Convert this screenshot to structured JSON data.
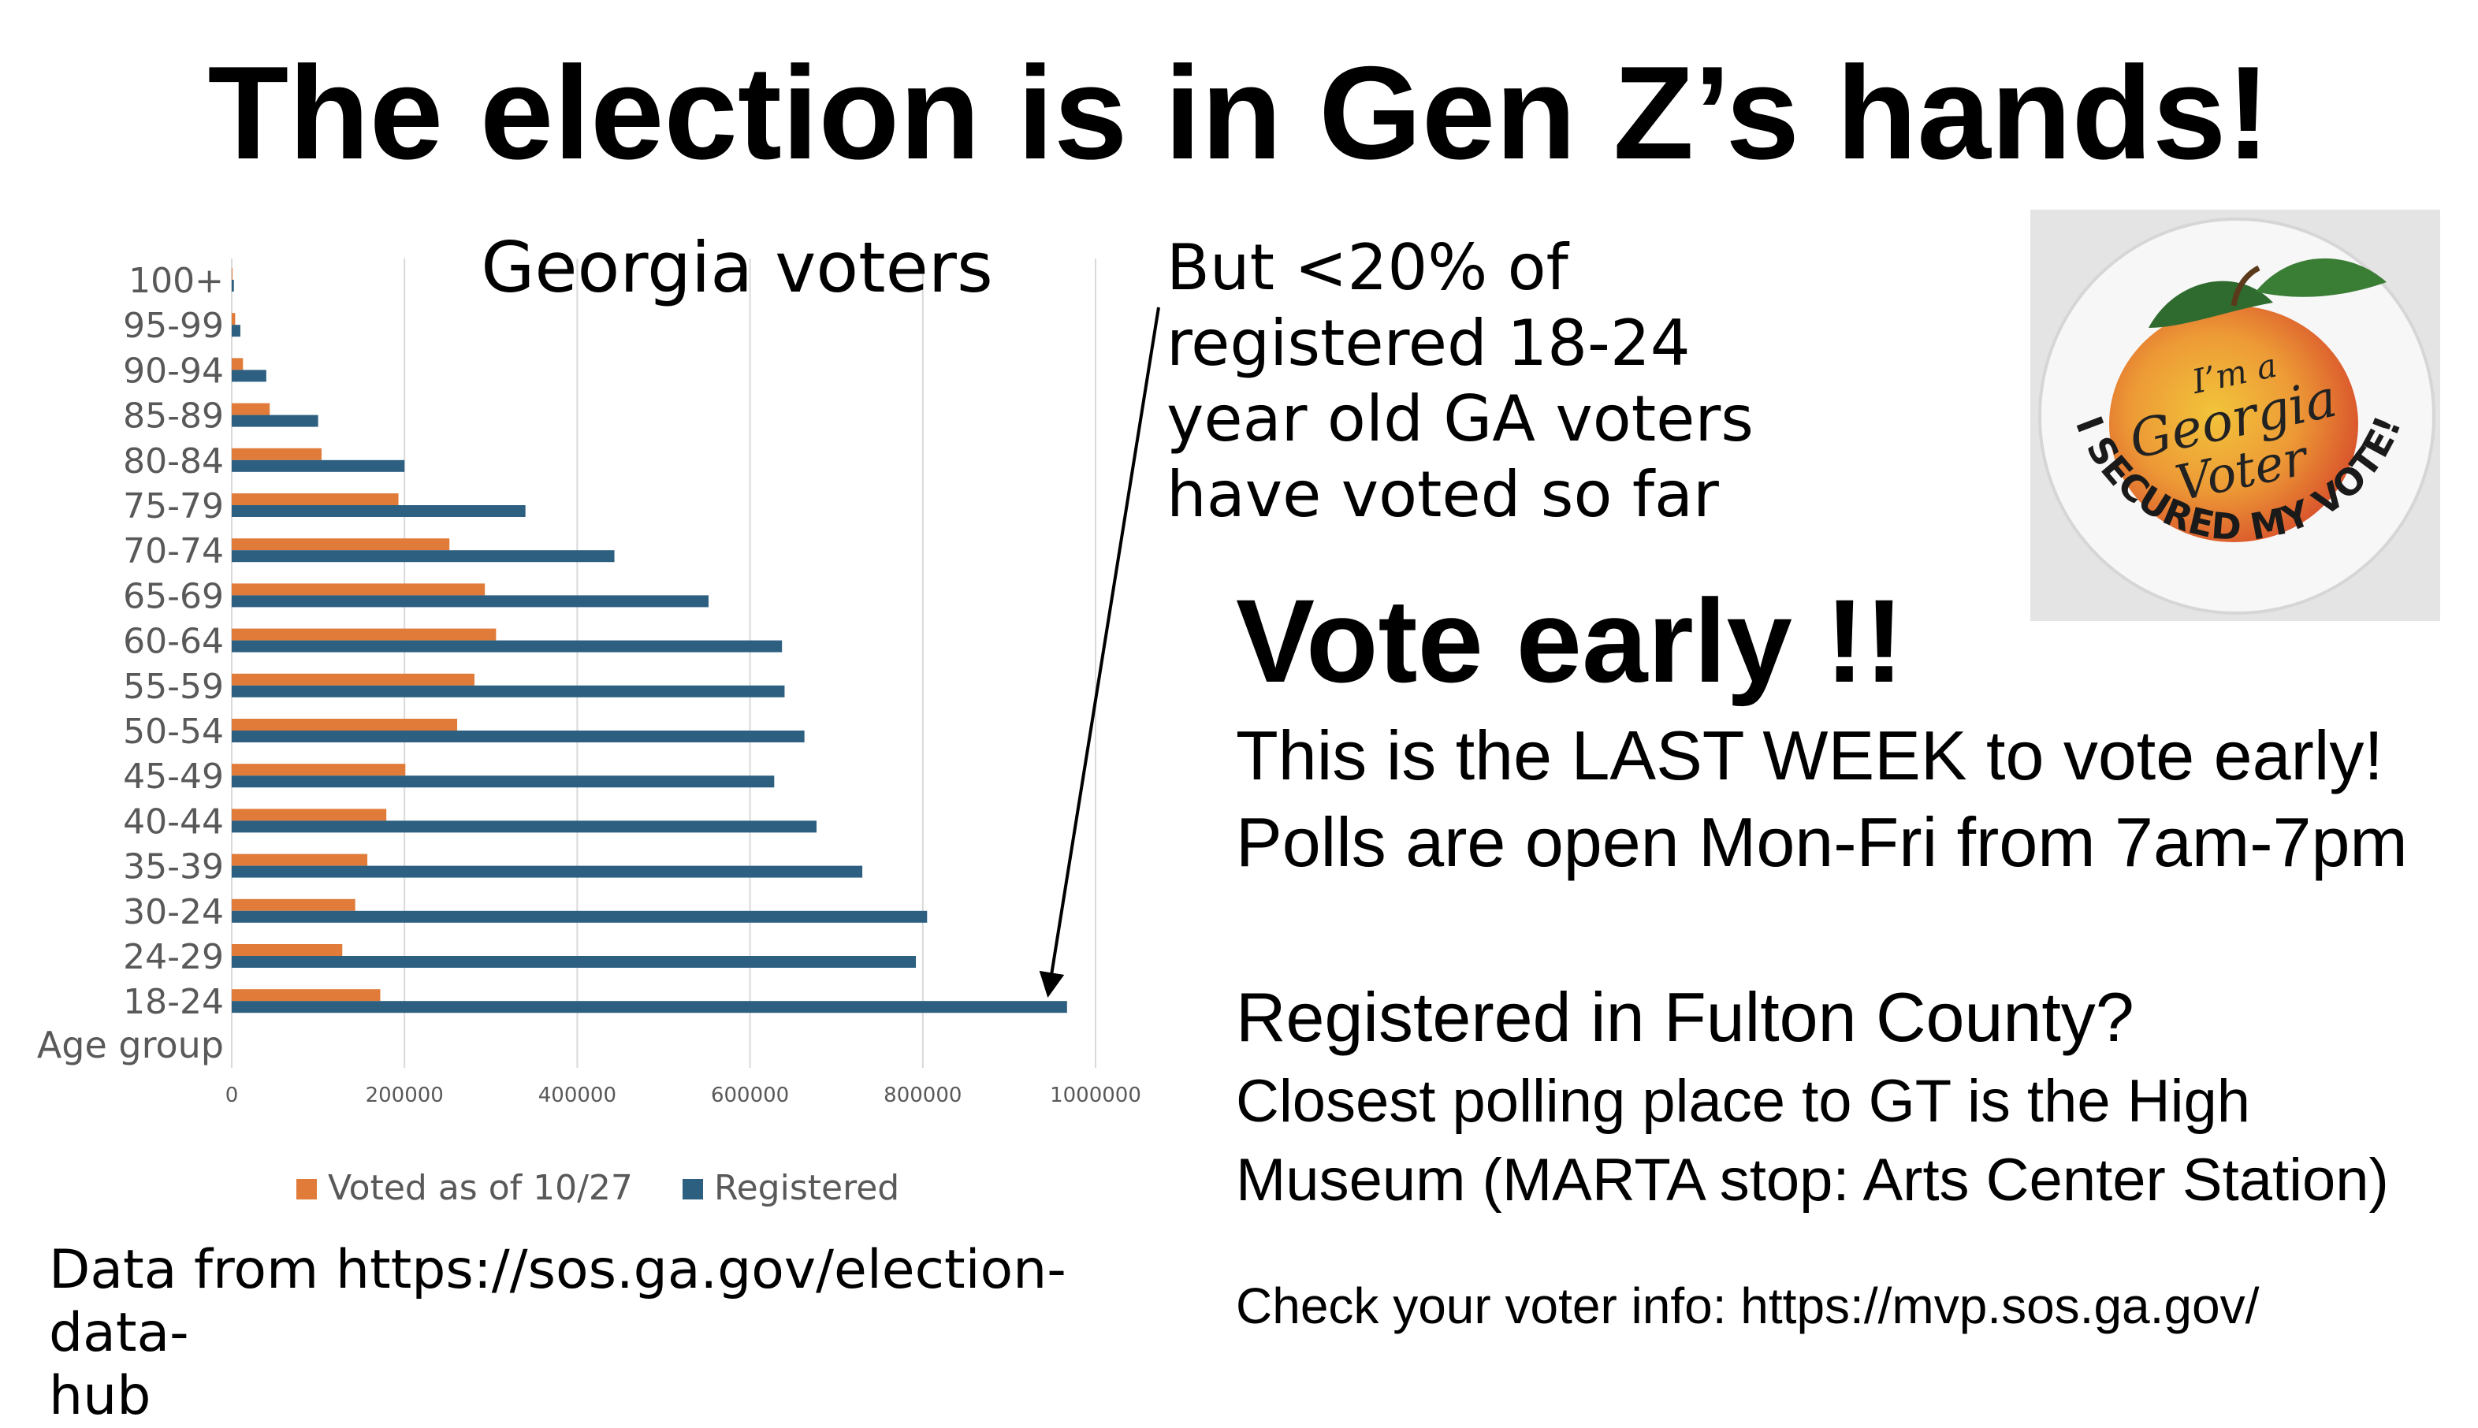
{
  "title": "The election is in Gen Z’s hands!",
  "callout": "But <20% of\nregistered 18-24\nyear old GA voters\nhave voted so far",
  "vote_early": "Vote early !!",
  "info": {
    "last_week": "This is the LAST WEEK to vote early!",
    "polls_open": "Polls are open Mon-Fri from 7am-7pm",
    "fulton_question": "Registered in Fulton County?",
    "closest_line1": "Closest polling place to GT is the High",
    "closest_line2": "Museum (MARTA stop: Arts Center Station)",
    "check_info": "Check your voter info: https://mvp.sos.ga.gov/"
  },
  "data_source": "Data from https://sos.ga.gov/election-data-\nhub",
  "sticker": {
    "line1": "I’m a",
    "line2": "Georgia",
    "line3": "Voter",
    "ring_text": "I SECURED MY VOTE!"
  },
  "chart_data": {
    "type": "bar",
    "orientation": "horizontal",
    "title": "Georgia voters",
    "ylabel": "Age group",
    "categories": [
      "100+",
      "95-99",
      "90-94",
      "85-89",
      "80-84",
      "75-79",
      "70-74",
      "65-69",
      "60-64",
      "55-59",
      "50-54",
      "45-49",
      "40-44",
      "35-39",
      "30-24",
      "24-29",
      "18-24"
    ],
    "series": [
      {
        "name": "Voted as of 10/27",
        "color": "#e07b39",
        "values": [
          700,
          4000,
          13000,
          44000,
          104000,
          193000,
          252000,
          293000,
          306000,
          281000,
          261000,
          201000,
          179000,
          157000,
          143000,
          128000,
          172000
        ]
      },
      {
        "name": "Registered",
        "color": "#2c5f80",
        "values": [
          2500,
          10000,
          40000,
          100000,
          200000,
          340000,
          443000,
          552000,
          637000,
          640000,
          663000,
          628000,
          677000,
          730000,
          805000,
          792000,
          967000
        ]
      }
    ],
    "xlim": [
      0,
      1000000
    ],
    "xticks": [
      0,
      200000,
      400000,
      600000,
      800000,
      1000000
    ],
    "grid": true,
    "legend": "bottom"
  }
}
